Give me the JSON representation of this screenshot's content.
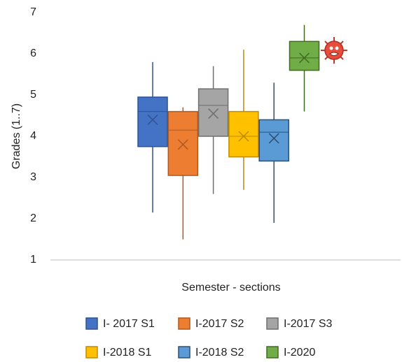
{
  "chart_data": {
    "type": "box",
    "y_label": "Grades (1..7)",
    "x_label": "Semester - sections",
    "ylim": [
      1,
      7
    ],
    "yticks": [
      1,
      2,
      3,
      4,
      5,
      6,
      7
    ],
    "grid": false,
    "legend": "bottom",
    "series": [
      {
        "name": "I- 2017 S1",
        "color": "#4472c4",
        "edge_color": "#2f528f",
        "min": 2.15,
        "q1": 3.75,
        "median": 4.6,
        "q3": 4.95,
        "max": 5.8,
        "mean": 4.4
      },
      {
        "name": "I-2017 S2",
        "color": "#ed7d31",
        "edge_color": "#ae5a21",
        "min": 1.5,
        "q1": 3.05,
        "median": 4.15,
        "q3": 4.6,
        "max": 4.7,
        "mean": 3.8
      },
      {
        "name": "I-2017 S3",
        "color": "#a5a5a5",
        "edge_color": "#6f6f6f",
        "min": 2.6,
        "q1": 4.0,
        "median": 4.75,
        "q3": 5.15,
        "max": 5.7,
        "mean": 4.55
      },
      {
        "name": "I-2018 S1",
        "color": "#ffc000",
        "edge_color": "#bc8c00",
        "min": 2.7,
        "q1": 3.5,
        "median": 4.0,
        "q3": 4.6,
        "max": 6.1,
        "mean": 4.0
      },
      {
        "name": "I-2018 S2",
        "color": "#5b9bd5",
        "edge_color": "#2e4f74",
        "min": 1.9,
        "q1": 3.4,
        "median": 4.1,
        "q3": 4.4,
        "max": 5.3,
        "mean": 3.95
      },
      {
        "name": "I-2020",
        "color": "#70ad47",
        "edge_color": "#3f6a22",
        "min": 4.6,
        "q1": 5.6,
        "median": 5.9,
        "q3": 6.3,
        "max": 6.7,
        "mean": 5.9
      }
    ]
  }
}
